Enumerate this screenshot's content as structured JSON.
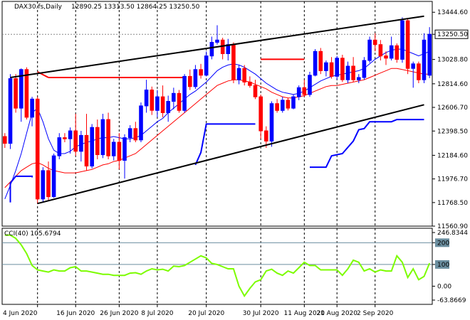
{
  "window": {
    "symbol_header": "DAX30.fs,Daily",
    "ohlc_header": "12890.25 13313.50 12864.25 13250.50"
  },
  "colors": {
    "bull_candle": "#0000ff",
    "bear_candle": "#ff0000",
    "ma_fast": "#0000ff",
    "ma_slow": "#ff0000",
    "trendlines": "#000000",
    "resistance_line": "#ff0000",
    "support_step": "#0000ff",
    "cci_line": "#7cfc00",
    "cci_levels": "#6b8e9f",
    "dotted_gridlines": "#000000"
  },
  "chart_data": [
    {
      "type": "candlestick",
      "title": "DAX30.fs,Daily",
      "ylim": [
        11560.9,
        13540
      ],
      "y_ticks": [
        "13444.60",
        "13250.50",
        "13028.80",
        "12814.60",
        "12606.70",
        "12398.50",
        "12184.60",
        "11976.70",
        "11768.50",
        "11560.90"
      ],
      "last_price_label": "13250.50",
      "x_ticks": [
        "4 Jun 2020",
        "16 Jun 2020",
        "26 Jun 2020",
        "8 Jul 2020",
        "20 Jul 2020",
        "30 Jul 2020",
        "11 Aug 2020",
        "21 Aug 2020",
        "2 Sep 2020"
      ],
      "candles": [
        [
          12350,
          12380,
          12250,
          12290
        ],
        [
          12290,
          12900,
          12240,
          12860
        ],
        [
          12860,
          12900,
          12560,
          12600
        ],
        [
          12600,
          12950,
          12480,
          12940
        ],
        [
          12940,
          12960,
          12500,
          12520
        ],
        [
          12520,
          12700,
          12440,
          12680
        ],
        [
          12680,
          12700,
          11760,
          11800
        ],
        [
          11800,
          12080,
          11770,
          12050
        ],
        [
          12050,
          12130,
          11780,
          11820
        ],
        [
          11820,
          12200,
          11810,
          12180
        ],
        [
          12180,
          12380,
          12150,
          12340
        ],
        [
          12340,
          12380,
          12300,
          12330
        ],
        [
          12330,
          12430,
          12200,
          12400
        ],
        [
          12400,
          12550,
          12180,
          12220
        ],
        [
          12220,
          12400,
          12130,
          12360
        ],
        [
          12360,
          12550,
          12050,
          12090
        ],
        [
          12090,
          12460,
          12070,
          12430
        ],
        [
          12430,
          12500,
          12150,
          12190
        ],
        [
          12190,
          12550,
          12160,
          12500
        ],
        [
          12500,
          12560,
          12150,
          12180
        ],
        [
          12180,
          12330,
          12140,
          12300
        ],
        [
          12300,
          12380,
          12060,
          12140
        ],
        [
          12140,
          12370,
          11980,
          12340
        ],
        [
          12340,
          12450,
          12300,
          12420
        ],
        [
          12420,
          12480,
          12300,
          12320
        ],
        [
          12320,
          12650,
          12300,
          12620
        ],
        [
          12620,
          12850,
          12560,
          12760
        ],
        [
          12760,
          12790,
          12540,
          12580
        ],
        [
          12580,
          12760,
          12520,
          12700
        ],
        [
          12700,
          12800,
          12520,
          12560
        ],
        [
          12560,
          12710,
          12480,
          12660
        ],
        [
          12660,
          12780,
          12590,
          12730
        ],
        [
          12730,
          12760,
          12560,
          12580
        ],
        [
          12580,
          12900,
          12560,
          12880
        ],
        [
          12880,
          12940,
          12760,
          12790
        ],
        [
          12790,
          12980,
          12770,
          12940
        ],
        [
          12940,
          12990,
          12860,
          12890
        ],
        [
          12890,
          13100,
          12880,
          13060
        ],
        [
          13060,
          13230,
          13030,
          13180
        ],
        [
          13180,
          13330,
          13160,
          13200
        ],
        [
          13200,
          13220,
          13030,
          13080
        ],
        [
          13080,
          13210,
          13020,
          13160
        ],
        [
          13160,
          13180,
          12820,
          12850
        ],
        [
          12850,
          12980,
          12810,
          12950
        ],
        [
          12950,
          12980,
          12800,
          12830
        ],
        [
          12830,
          12880,
          12780,
          12800
        ],
        [
          12800,
          12850,
          12680,
          12700
        ],
        [
          12700,
          12720,
          12330,
          12400
        ],
        [
          12400,
          12440,
          12250,
          12310
        ],
        [
          12310,
          12660,
          12260,
          12640
        ],
        [
          12640,
          12680,
          12560,
          12580
        ],
        [
          12580,
          12700,
          12560,
          12670
        ],
        [
          12670,
          12690,
          12580,
          12600
        ],
        [
          12600,
          12720,
          12590,
          12700
        ],
        [
          12700,
          12800,
          12670,
          12780
        ],
        [
          12780,
          12850,
          12700,
          12720
        ],
        [
          12720,
          12920,
          12700,
          12890
        ],
        [
          12890,
          13120,
          12880,
          13100
        ],
        [
          13100,
          13130,
          12900,
          12930
        ],
        [
          12930,
          13020,
          12880,
          13000
        ],
        [
          13000,
          13050,
          12860,
          12880
        ],
        [
          12880,
          13060,
          12850,
          13040
        ],
        [
          13040,
          13070,
          12830,
          12850
        ],
        [
          12850,
          13010,
          12820,
          12970
        ],
        [
          12970,
          13050,
          12830,
          12850
        ],
        [
          12850,
          12900,
          12820,
          12870
        ],
        [
          12870,
          13050,
          12850,
          13020
        ],
        [
          13020,
          13230,
          13000,
          13200
        ],
        [
          13200,
          13260,
          13100,
          13160
        ],
        [
          13160,
          13200,
          13020,
          13060
        ],
        [
          13060,
          13100,
          12980,
          13040
        ],
        [
          13040,
          13230,
          13020,
          13150
        ],
        [
          13150,
          13170,
          13000,
          13030
        ],
        [
          13030,
          13400,
          13000,
          13370
        ],
        [
          13370,
          13390,
          12900,
          12950
        ],
        [
          12950,
          13010,
          12780,
          12990
        ],
        [
          12990,
          13010,
          12820,
          12850
        ],
        [
          12850,
          13260,
          12820,
          13200
        ],
        [
          12890,
          13313.5,
          12864.25,
          13250.5
        ]
      ],
      "ma_fast": [
        11800,
        11920,
        12050,
        12200,
        12380,
        12560,
        12600,
        12480,
        12330,
        12230,
        12200,
        12200,
        12220,
        12260,
        12280,
        12300,
        12310,
        12330,
        12340,
        12340,
        12350,
        12340,
        12330,
        12330,
        12340,
        12360,
        12400,
        12440,
        12480,
        12510,
        12560,
        12600,
        12640,
        12680,
        12720,
        12750,
        12790,
        12830,
        12880,
        12930,
        12960,
        12980,
        12990,
        12980,
        12960,
        12930,
        12900,
        12860,
        12820,
        12790,
        12760,
        12740,
        12730,
        12720,
        12730,
        12750,
        12780,
        12810,
        12840,
        12860,
        12880,
        12890,
        12900,
        12910,
        12920,
        12930,
        12950,
        12990,
        13030,
        13060,
        13090,
        13110,
        13120,
        13120,
        13100,
        13080,
        13060,
        13080,
        13100
      ],
      "ma_slow": [
        11900,
        11950,
        12000,
        12050,
        12080,
        12110,
        12120,
        12100,
        12070,
        12050,
        12040,
        12030,
        12030,
        12030,
        12040,
        12050,
        12060,
        12080,
        12100,
        12110,
        12130,
        12140,
        12160,
        12180,
        12200,
        12240,
        12280,
        12320,
        12360,
        12400,
        12440,
        12480,
        12520,
        12560,
        12600,
        12640,
        12680,
        12720,
        12760,
        12800,
        12820,
        12840,
        12850,
        12850,
        12840,
        12830,
        12810,
        12790,
        12770,
        12740,
        12720,
        12700,
        12690,
        12690,
        12700,
        12710,
        12730,
        12750,
        12770,
        12790,
        12800,
        12800,
        12810,
        12820,
        12830,
        12840,
        12850,
        12870,
        12890,
        12910,
        12930,
        12950,
        12950,
        12940,
        12930,
        12920,
        12910,
        12900,
        12900
      ],
      "trend_lines": [
        {
          "from": [
            1,
            12870
          ],
          "to": [
            77,
            13410
          ]
        },
        {
          "from": [
            6,
            11760
          ],
          "to": [
            77,
            12630
          ]
        }
      ],
      "resistance_lines": [
        {
          "from": [
            6,
            12920
          ],
          "to": [
            8,
            12870
          ]
        },
        {
          "from": [
            8,
            12870
          ],
          "to": [
            33,
            12870
          ]
        },
        {
          "from": [
            47,
            13030
          ],
          "to": [
            55,
            13030
          ]
        }
      ],
      "support_steps": [
        [
          [
            1,
            11770
          ],
          [
            1,
            11940
          ],
          [
            2,
            12000
          ],
          [
            5,
            12000
          ],
          [
            5,
            11990
          ]
        ],
        [
          [
            35,
            12100
          ],
          [
            36,
            12210
          ],
          [
            37,
            12460
          ],
          [
            46,
            12460
          ]
        ],
        [
          [
            56,
            12080
          ],
          [
            59,
            12080
          ],
          [
            60,
            12180
          ],
          [
            62,
            12200
          ],
          [
            64,
            12310
          ],
          [
            65,
            12410
          ],
          [
            66,
            12420
          ],
          [
            67,
            12480
          ],
          [
            71,
            12480
          ],
          [
            72,
            12500
          ],
          [
            77,
            12500
          ]
        ]
      ],
      "vertical_dotted_x": [
        6,
        13,
        21,
        28,
        37,
        47,
        55,
        61,
        68
      ]
    },
    {
      "type": "line",
      "title": "CCI(40) 105.6794",
      "y_ticks": [
        "246.8344",
        "200",
        "100",
        "0.00",
        "-63.8669"
      ],
      "y_highlight_labels": [
        "200",
        "100"
      ],
      "ylim": [
        -63.8669,
        246.8344
      ],
      "level_lines": [
        200,
        100
      ],
      "values": [
        235,
        235,
        220,
        190,
        150,
        95,
        75,
        70,
        65,
        75,
        70,
        70,
        85,
        90,
        70,
        70,
        65,
        60,
        55,
        55,
        50,
        50,
        50,
        60,
        62,
        55,
        70,
        80,
        75,
        78,
        70,
        92,
        90,
        95,
        110,
        125,
        140,
        130,
        105,
        100,
        90,
        80,
        80,
        0,
        -45,
        -10,
        20,
        30,
        70,
        78,
        60,
        50,
        70,
        60,
        85,
        110,
        95,
        95,
        75,
        75,
        75,
        75,
        50,
        80,
        120,
        110,
        70,
        80,
        65,
        75,
        70,
        70,
        140,
        110,
        40,
        80,
        30,
        45,
        106
      ]
    }
  ]
}
